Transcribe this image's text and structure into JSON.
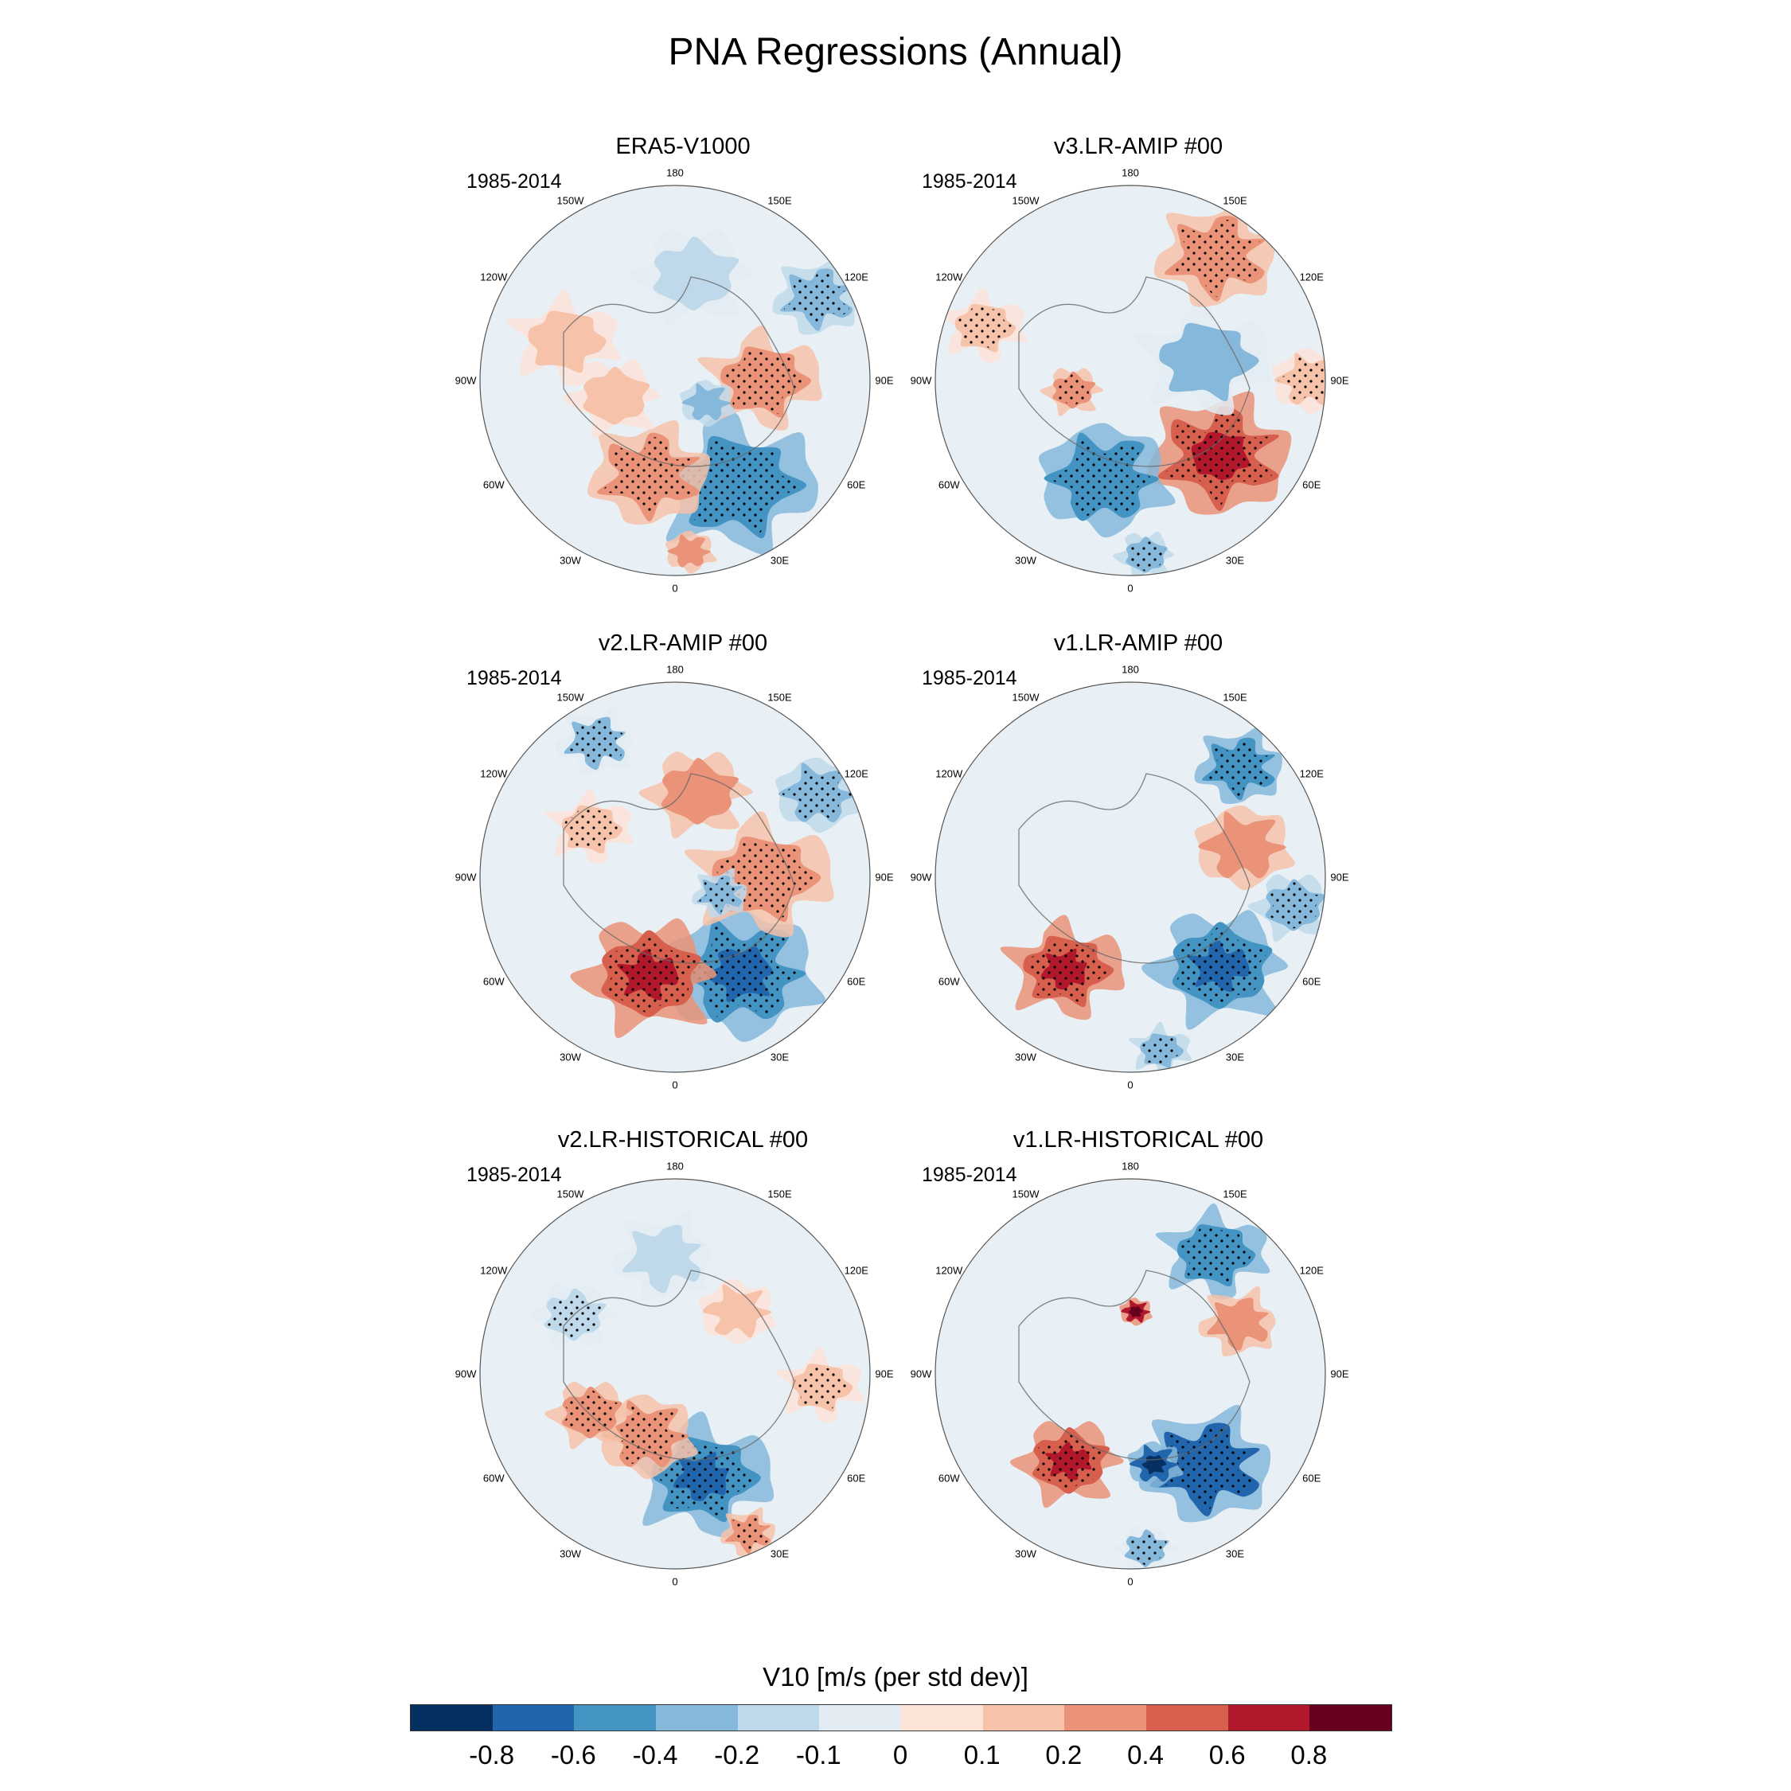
{
  "title": "PNA Regressions (Annual)",
  "colors": {
    "strong_neg": "#2166ac",
    "neg": "#6aa6d0",
    "weak_neg": "#d3e5f1",
    "neutral": "#e8f0f5",
    "weak_pos": "#f8dcd0",
    "pos": "#ee9a7c",
    "strong_pos": "#cc4c3b",
    "coast": "#666666",
    "stipple": "#000000"
  },
  "longitude_labels": [
    "180",
    "150E",
    "120E",
    "90E",
    "60E",
    "30E",
    "0",
    "30W",
    "60W",
    "90W",
    "120W",
    "150W"
  ],
  "chart_data": {
    "type": "polar-stereographic-contour",
    "title": "PNA Regressions (Annual)",
    "variable_label": "V10 [m/s (per std dev)]",
    "colorbar": {
      "levels": [
        "-0.8",
        "-0.6",
        "-0.4",
        "-0.2",
        "-0.1",
        "0",
        "0.1",
        "0.2",
        "0.4",
        "0.6",
        "0.8"
      ],
      "colors": [
        "#053061",
        "#2166ac",
        "#4393c3",
        "#85b8da",
        "#bfd9ea",
        "#e3ecf3",
        "#fbe3d8",
        "#f6c2aa",
        "#ea9378",
        "#d6604d",
        "#b2182b",
        "#67001f"
      ]
    },
    "panels": [
      {
        "title": "ERA5-V1000",
        "period": "1985-2014",
        "blobs": [
          {
            "lon": 150,
            "r": 0.62,
            "size": 0.28,
            "value": -0.45,
            "stipple": true
          },
          {
            "lon": 195,
            "r": 0.5,
            "size": 0.22,
            "value": 0.35,
            "stipple": true
          },
          {
            "lon": 175,
            "r": 0.88,
            "size": 0.09,
            "value": 0.35,
            "stipple": false
          },
          {
            "lon": 255,
            "r": 0.32,
            "size": 0.16,
            "value": 0.2,
            "stipple": false
          },
          {
            "lon": 90,
            "r": 0.45,
            "size": 0.2,
            "value": 0.4,
            "stipple": true
          },
          {
            "lon": 60,
            "r": 0.85,
            "size": 0.16,
            "value": -0.25,
            "stipple": true
          },
          {
            "lon": 125,
            "r": 0.2,
            "size": 0.1,
            "value": -0.3,
            "stipple": false
          },
          {
            "lon": 10,
            "r": 0.55,
            "size": 0.2,
            "value": -0.12,
            "stipple": false
          },
          {
            "lon": 290,
            "r": 0.6,
            "size": 0.18,
            "value": 0.12,
            "stipple": false
          }
        ]
      },
      {
        "title": "v3.LR-AMIP  #00",
        "period": "1985-2014",
        "blobs": [
          {
            "lon": 130,
            "r": 0.6,
            "size": 0.26,
            "value": 0.5,
            "stipple": true
          },
          {
            "lon": 195,
            "r": 0.52,
            "size": 0.24,
            "value": -0.45,
            "stipple": true
          },
          {
            "lon": 175,
            "r": 0.9,
            "size": 0.1,
            "value": -0.25,
            "stipple": true
          },
          {
            "lon": 75,
            "r": 0.4,
            "size": 0.22,
            "value": -0.2,
            "stipple": false
          },
          {
            "lon": 35,
            "r": 0.78,
            "size": 0.22,
            "value": 0.35,
            "stipple": true
          },
          {
            "lon": 90,
            "r": 0.92,
            "size": 0.14,
            "value": 0.2,
            "stipple": true
          },
          {
            "lon": 260,
            "r": 0.3,
            "size": 0.1,
            "value": 0.3,
            "stipple": true
          },
          {
            "lon": 290,
            "r": 0.8,
            "size": 0.14,
            "value": 0.15,
            "stipple": true
          }
        ]
      },
      {
        "title": "v2.LR-AMIP  #00",
        "period": "1985-2014",
        "blobs": [
          {
            "lon": 145,
            "r": 0.6,
            "size": 0.28,
            "value": -0.55,
            "stipple": true
          },
          {
            "lon": 195,
            "r": 0.52,
            "size": 0.24,
            "value": 0.55,
            "stipple": true
          },
          {
            "lon": 90,
            "r": 0.45,
            "size": 0.24,
            "value": 0.35,
            "stipple": true
          },
          {
            "lon": 110,
            "r": 0.25,
            "size": 0.1,
            "value": -0.35,
            "stipple": true
          },
          {
            "lon": 60,
            "r": 0.85,
            "size": 0.16,
            "value": -0.3,
            "stipple": true
          },
          {
            "lon": 15,
            "r": 0.45,
            "size": 0.18,
            "value": 0.25,
            "stipple": false
          },
          {
            "lon": 300,
            "r": 0.5,
            "size": 0.14,
            "value": 0.15,
            "stipple": true
          },
          {
            "lon": 330,
            "r": 0.8,
            "size": 0.14,
            "value": -0.2,
            "stipple": true
          }
        ]
      },
      {
        "title": "v1.LR-AMIP  #00",
        "period": "1985-2014",
        "blobs": [
          {
            "lon": 135,
            "r": 0.65,
            "size": 0.24,
            "value": -0.55,
            "stipple": true
          },
          {
            "lon": 215,
            "r": 0.58,
            "size": 0.2,
            "value": 0.5,
            "stipple": true
          },
          {
            "lon": 45,
            "r": 0.8,
            "size": 0.16,
            "value": -0.45,
            "stipple": true
          },
          {
            "lon": 75,
            "r": 0.6,
            "size": 0.18,
            "value": 0.25,
            "stipple": false
          },
          {
            "lon": 100,
            "r": 0.85,
            "size": 0.14,
            "value": -0.3,
            "stipple": true
          },
          {
            "lon": 170,
            "r": 0.9,
            "size": 0.1,
            "value": -0.25,
            "stipple": true
          }
        ]
      },
      {
        "title": "v2.LR-HISTORICAL  #00",
        "period": "1985-2014",
        "blobs": [
          {
            "lon": 165,
            "r": 0.55,
            "size": 0.24,
            "value": -0.5,
            "stipple": true
          },
          {
            "lon": 155,
            "r": 0.9,
            "size": 0.1,
            "value": 0.4,
            "stipple": true
          },
          {
            "lon": 205,
            "r": 0.35,
            "size": 0.18,
            "value": 0.4,
            "stipple": true
          },
          {
            "lon": 245,
            "r": 0.48,
            "size": 0.14,
            "value": 0.25,
            "stipple": true
          },
          {
            "lon": 95,
            "r": 0.75,
            "size": 0.14,
            "value": 0.2,
            "stipple": true
          },
          {
            "lon": 355,
            "r": 0.6,
            "size": 0.18,
            "value": -0.15,
            "stipple": false
          },
          {
            "lon": 45,
            "r": 0.45,
            "size": 0.14,
            "value": 0.2,
            "stipple": false
          },
          {
            "lon": 300,
            "r": 0.6,
            "size": 0.14,
            "value": -0.15,
            "stipple": true
          }
        ]
      },
      {
        "title": "v1.LR-HISTORICAL  #00",
        "period": "1985-2014",
        "blobs": [
          {
            "lon": 140,
            "r": 0.62,
            "size": 0.24,
            "value": -0.6,
            "stipple": true
          },
          {
            "lon": 165,
            "r": 0.48,
            "size": 0.1,
            "value": -0.7,
            "stipple": false
          },
          {
            "lon": 215,
            "r": 0.55,
            "size": 0.18,
            "value": 0.5,
            "stipple": true
          },
          {
            "lon": 35,
            "r": 0.75,
            "size": 0.18,
            "value": -0.45,
            "stipple": true
          },
          {
            "lon": 65,
            "r": 0.62,
            "size": 0.14,
            "value": 0.3,
            "stipple": false
          },
          {
            "lon": 5,
            "r": 0.32,
            "size": 0.06,
            "value": 0.7,
            "stipple": false
          },
          {
            "lon": 175,
            "r": 0.9,
            "size": 0.1,
            "value": -0.2,
            "stipple": true
          }
        ]
      }
    ]
  }
}
